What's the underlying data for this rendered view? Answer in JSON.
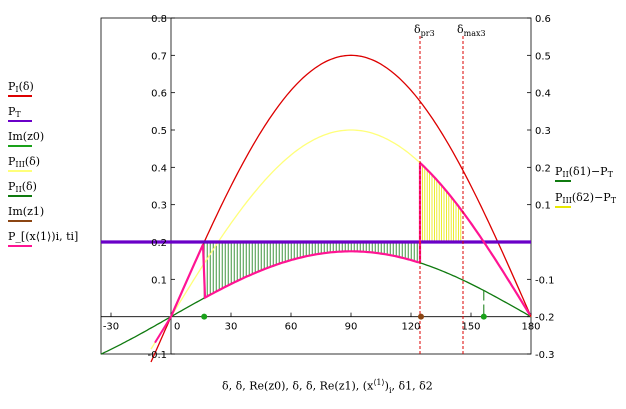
{
  "chart_data": {
    "type": "line",
    "x_axis": {
      "min": -35,
      "max": 180,
      "ticks": [
        -30,
        0,
        30,
        60,
        90,
        120,
        150,
        180
      ],
      "label": "δ, δ, Re(z0), δ, δ, Re(z1), (x⟨1⟩)i, δ1, δ2"
    },
    "y_left": {
      "min": -0.1,
      "max": 0.8,
      "ticks": [
        "-0.1",
        "0.1",
        "0.2",
        "0.3",
        "0.4",
        "0.5",
        "0.6",
        "0.7",
        "0.8"
      ],
      "tick_values": [
        -0.1,
        0.1,
        0.2,
        0.3,
        0.4,
        0.5,
        0.6,
        0.7,
        0.8
      ]
    },
    "y_right": {
      "min": -0.3,
      "max": 0.6,
      "ticks": [
        "-0.3",
        "-0.2",
        "-0.1",
        "0.1",
        "0.2",
        "0.3",
        "0.4",
        "0.5",
        "0.6"
      ],
      "tick_values": [
        -0.3,
        -0.2,
        -0.1,
        0.1,
        0.2,
        0.3,
        0.4,
        0.5,
        0.6
      ]
    },
    "series": [
      {
        "name": "PI(δ)",
        "kind": "sine",
        "amplitude": 0.7,
        "color": "#dd0000"
      },
      {
        "name": "PT",
        "kind": "constant",
        "value": 0.2,
        "color": "#6a00c8"
      },
      {
        "name": "PIII(δ)",
        "kind": "sine",
        "amplitude": 0.5,
        "color": "#ffff7a"
      },
      {
        "name": "PII(δ)",
        "kind": "sine",
        "amplitude": 0.175,
        "color": "#0f7a0f"
      },
      {
        "name": "P_[(x⟨1⟩)i, ti]",
        "kind": "trajectory",
        "color": "#ff1493"
      }
    ],
    "markers": [
      {
        "name": "Im(z0)",
        "x": [
          16.6,
          156.4
        ],
        "y": [
          0,
          0
        ],
        "color": "#1aa11a"
      },
      {
        "name": "Im(z1)",
        "x": [
          125
        ],
        "y": [
          0
        ],
        "color": "#8b4513"
      }
    ],
    "vlines": [
      {
        "x": 124.5,
        "label_main": "δ",
        "label_sub": "pr3",
        "color": "#dd0000"
      },
      {
        "x": 146,
        "label_main": "δ",
        "label_sub": "max3",
        "color": "#dd0000"
      }
    ],
    "shaded": [
      {
        "name": "PII(δ1)−PT",
        "from_x": 16.6,
        "to_x": 124.5,
        "color": "#0f7a0f"
      },
      {
        "name": "PIII(δ2)−PT",
        "from_x": 124.5,
        "to_x": 146,
        "color": "#e8e800"
      }
    ],
    "dashed_drops": [
      {
        "x": 156.4,
        "color": "#0f7a0f"
      }
    ]
  },
  "legend": {
    "left": [
      {
        "main": "P",
        "sub": "I",
        "rest": "(δ)",
        "color": "#dd0000"
      },
      {
        "main": "P",
        "sub": "T",
        "rest": "",
        "color": "#6a00c8"
      },
      {
        "main": "Im(z0)",
        "sub": "",
        "rest": "",
        "color": "#1aa11a"
      },
      {
        "main": "P",
        "sub": "III",
        "rest": "(δ)",
        "color": "#ffff7a"
      },
      {
        "main": "P",
        "sub": "II",
        "rest": "(δ)",
        "color": "#0f7a0f"
      },
      {
        "main": "Im(z1)",
        "sub": "",
        "rest": "",
        "color": "#8b4513"
      },
      {
        "main": "P_",
        "sub": "",
        "rest": "[(x⟨1⟩)i, ti]",
        "color": "#ff1493"
      }
    ],
    "right": [
      {
        "main": "P",
        "sub": "II",
        "rest": "(δ1)−P",
        "sub2": "T",
        "color": "#0f7a0f"
      },
      {
        "main": "P",
        "sub": "III",
        "rest": "(δ2)−P",
        "sub2": "T",
        "color": "#e8e800"
      }
    ]
  },
  "xlabel": {
    "part1": "δ, δ, Re(z0), δ, δ, Re(z1), ",
    "part2": "(x",
    "sup": "⟨1⟩",
    "part3": ")",
    "sub": "i",
    "part4": ", δ1, δ2"
  }
}
